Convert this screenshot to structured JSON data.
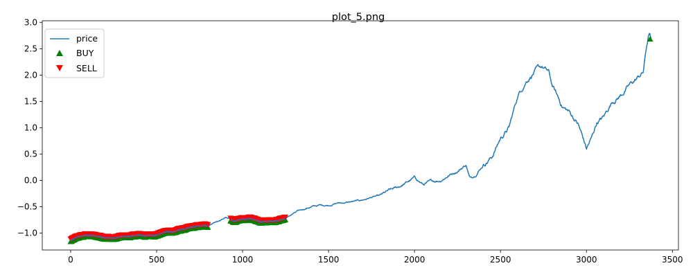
{
  "chart_data": {
    "type": "line",
    "title": "plot_5.png",
    "xlabel": "",
    "ylabel": "",
    "xlim": [
      -165,
      3535
    ],
    "ylim": [
      -1.32,
      3.03
    ],
    "x_ticks": [
      0,
      500,
      1000,
      1500,
      2000,
      2500,
      3000,
      3500
    ],
    "y_ticks": [
      -1.0,
      -0.5,
      0.0,
      0.5,
      1.0,
      1.5,
      2.0,
      2.5,
      3.0
    ],
    "x_tick_labels": [
      "0",
      "500",
      "1000",
      "1500",
      "2000",
      "2500",
      "3000",
      "3500"
    ],
    "y_tick_labels": [
      "−1.0",
      "−0.5",
      "0.0",
      "0.5",
      "1.0",
      "1.5",
      "2.0",
      "2.5",
      "3.0"
    ],
    "grid": false,
    "legend_position": "top-left",
    "legend": [
      {
        "label": "price",
        "marker": "line",
        "color": "#1f77b4"
      },
      {
        "label": "BUY",
        "marker": "triangle-up",
        "color": "#008000"
      },
      {
        "label": "SELL",
        "marker": "triangle-down",
        "color": "#ff0000"
      }
    ],
    "series": [
      {
        "name": "price",
        "color": "#1f77b4",
        "anchors": [
          [
            0,
            -1.14
          ],
          [
            50,
            -1.07
          ],
          [
            100,
            -1.04
          ],
          [
            150,
            -1.06
          ],
          [
            200,
            -1.08
          ],
          [
            250,
            -1.1
          ],
          [
            300,
            -1.07
          ],
          [
            350,
            -1.06
          ],
          [
            400,
            -1.04
          ],
          [
            450,
            -1.05
          ],
          [
            500,
            -1.03
          ],
          [
            550,
            -0.98
          ],
          [
            600,
            -0.97
          ],
          [
            650,
            -0.93
          ],
          [
            700,
            -0.9
          ],
          [
            750,
            -0.87
          ],
          [
            800,
            -0.86
          ],
          [
            830,
            -0.8
          ],
          [
            870,
            -0.76
          ],
          [
            900,
            -0.71
          ],
          [
            930,
            -0.74
          ],
          [
            960,
            -0.78
          ],
          [
            1000,
            -0.74
          ],
          [
            1050,
            -0.73
          ],
          [
            1100,
            -0.77
          ],
          [
            1150,
            -0.77
          ],
          [
            1200,
            -0.76
          ],
          [
            1250,
            -0.72
          ],
          [
            1300,
            -0.62
          ],
          [
            1350,
            -0.55
          ],
          [
            1400,
            -0.5
          ],
          [
            1450,
            -0.47
          ],
          [
            1500,
            -0.47
          ],
          [
            1550,
            -0.43
          ],
          [
            1600,
            -0.42
          ],
          [
            1650,
            -0.4
          ],
          [
            1700,
            -0.37
          ],
          [
            1750,
            -0.32
          ],
          [
            1800,
            -0.29
          ],
          [
            1850,
            -0.2
          ],
          [
            1900,
            -0.14
          ],
          [
            1950,
            -0.05
          ],
          [
            2000,
            0.05
          ],
          [
            2050,
            -0.08
          ],
          [
            2100,
            -0.02
          ],
          [
            2150,
            0.0
          ],
          [
            2200,
            0.1
          ],
          [
            2250,
            0.18
          ],
          [
            2300,
            0.3
          ],
          [
            2320,
            0.05
          ],
          [
            2350,
            0.1
          ],
          [
            2400,
            0.3
          ],
          [
            2450,
            0.45
          ],
          [
            2500,
            0.8
          ],
          [
            2550,
            1.0
          ],
          [
            2600,
            1.6
          ],
          [
            2650,
            1.9
          ],
          [
            2700,
            2.08
          ],
          [
            2740,
            2.15
          ],
          [
            2780,
            2.05
          ],
          [
            2800,
            1.8
          ],
          [
            2830,
            1.6
          ],
          [
            2860,
            1.4
          ],
          [
            2900,
            1.3
          ],
          [
            2950,
            1.08
          ],
          [
            2980,
            0.8
          ],
          [
            3000,
            0.6
          ],
          [
            3030,
            0.8
          ],
          [
            3060,
            1.1
          ],
          [
            3100,
            1.2
          ],
          [
            3150,
            1.5
          ],
          [
            3200,
            1.62
          ],
          [
            3250,
            1.8
          ],
          [
            3300,
            1.95
          ],
          [
            3330,
            2.05
          ],
          [
            3350,
            2.55
          ],
          [
            3365,
            2.8
          ],
          [
            3375,
            2.7
          ]
        ]
      },
      {
        "name": "BUY",
        "color": "#008000",
        "segments": [
          [
            0,
            800
          ],
          [
            930,
            1250
          ]
        ],
        "points": [
          [
            3370,
            2.68
          ]
        ]
      },
      {
        "name": "SELL",
        "color": "#ff0000",
        "segments": [
          [
            0,
            800
          ],
          [
            930,
            1250
          ]
        ]
      }
    ]
  }
}
